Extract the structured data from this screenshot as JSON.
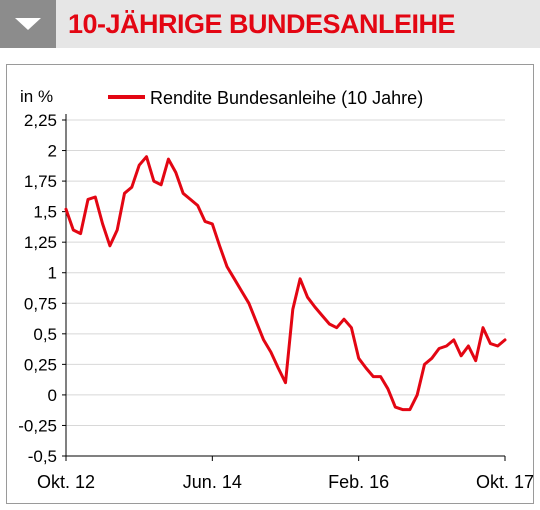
{
  "header": {
    "title": "10-JÄHRIGE BUNDESANLEIHE",
    "icon": "chevron-down-icon",
    "title_color": "#e30613",
    "badge_color": "#8c8c8c",
    "band_color": "#e6e6e6"
  },
  "chart_data": {
    "type": "line",
    "title": "10-JÄHRIGE BUNDESANLEIHE",
    "ylabel": "in %",
    "xlabel": "",
    "ylim": [
      -0.5,
      2.25
    ],
    "yticks": [
      -0.5,
      -0.25,
      0,
      0.25,
      0.5,
      0.75,
      1,
      1.25,
      1.5,
      1.75,
      2,
      2.25
    ],
    "ytick_labels": [
      "-0,5",
      "-0,25",
      "0",
      "0,25",
      "0,5",
      "0,75",
      "1",
      "1,25",
      "1,5",
      "1,75",
      "2",
      "2,25"
    ],
    "xticks": [
      "2012-10",
      "2014-06",
      "2016-02",
      "2017-10"
    ],
    "xtick_labels": [
      "Okt. 12",
      "Jun. 14",
      "Feb. 16",
      "Okt. 17"
    ],
    "xlim": [
      "2012-10",
      "2017-10"
    ],
    "grid": "horizontal",
    "legend_position": "top",
    "series": [
      {
        "name": "Rendite Bundesanleihe (10 Jahre)",
        "color": "#e30613",
        "x": [
          "2012-10",
          "2012-11",
          "2012-12",
          "2013-01",
          "2013-02",
          "2013-03",
          "2013-04",
          "2013-05",
          "2013-06",
          "2013-07",
          "2013-08",
          "2013-09",
          "2013-10",
          "2013-11",
          "2013-12",
          "2014-01",
          "2014-02",
          "2014-03",
          "2014-04",
          "2014-05",
          "2014-06",
          "2014-07",
          "2014-08",
          "2014-09",
          "2014-10",
          "2014-11",
          "2014-12",
          "2015-01",
          "2015-02",
          "2015-03",
          "2015-04",
          "2015-05",
          "2015-06",
          "2015-07",
          "2015-08",
          "2015-09",
          "2015-10",
          "2015-11",
          "2015-12",
          "2016-01",
          "2016-02",
          "2016-03",
          "2016-04",
          "2016-05",
          "2016-06",
          "2016-07",
          "2016-08",
          "2016-09",
          "2016-10",
          "2016-11",
          "2016-12",
          "2017-01",
          "2017-02",
          "2017-03",
          "2017-04",
          "2017-05",
          "2017-06",
          "2017-07",
          "2017-08",
          "2017-09",
          "2017-10"
        ],
        "values": [
          1.52,
          1.35,
          1.32,
          1.6,
          1.62,
          1.4,
          1.22,
          1.35,
          1.65,
          1.7,
          1.88,
          1.95,
          1.75,
          1.72,
          1.93,
          1.82,
          1.65,
          1.6,
          1.55,
          1.42,
          1.4,
          1.22,
          1.05,
          0.95,
          0.85,
          0.75,
          0.6,
          0.45,
          0.35,
          0.22,
          0.1,
          0.7,
          0.95,
          0.8,
          0.72,
          0.65,
          0.58,
          0.55,
          0.62,
          0.55,
          0.3,
          0.22,
          0.15,
          0.15,
          0.05,
          -0.1,
          -0.12,
          -0.12,
          0.0,
          0.25,
          0.3,
          0.38,
          0.4,
          0.45,
          0.32,
          0.4,
          0.28,
          0.55,
          0.42,
          0.4,
          0.45
        ]
      }
    ]
  }
}
